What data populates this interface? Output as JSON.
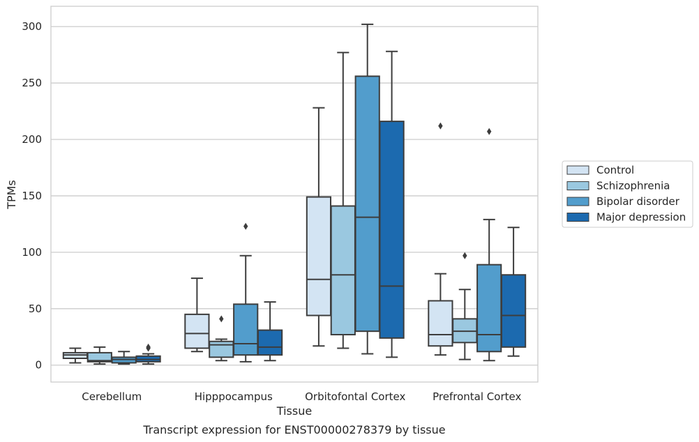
{
  "caption": "Transcript expression for ENST00000278379 by tissue",
  "chart_data": {
    "type": "box",
    "xlabel": "Tissue",
    "ylabel": "TPMs",
    "ylim": [
      -15,
      318
    ],
    "yticks": [
      0,
      50,
      100,
      150,
      200,
      250,
      300
    ],
    "grid": "y",
    "legend_position": "right",
    "categories": [
      "Cerebellum",
      "Hipppocampus",
      "Orbitofontal Cortex",
      "Prefrontal Cortex"
    ],
    "series": [
      {
        "name": "Control",
        "color": "#d3e4f3",
        "boxes": [
          {
            "whislo": 2,
            "q1": 6,
            "med": 9,
            "q3": 11,
            "whishi": 15,
            "fliers": []
          },
          {
            "whislo": 12,
            "q1": 15,
            "med": 28,
            "q3": 45,
            "whishi": 77,
            "fliers": []
          },
          {
            "whislo": 17,
            "q1": 44,
            "med": 76,
            "q3": 149,
            "whishi": 228,
            "fliers": []
          },
          {
            "whislo": 9,
            "q1": 17,
            "med": 27,
            "q3": 57,
            "whishi": 81,
            "fliers": [
              212
            ]
          }
        ]
      },
      {
        "name": "Schizophrenia",
        "color": "#9ac8e0",
        "boxes": [
          {
            "whislo": 1,
            "q1": 3,
            "med": 4,
            "q3": 11,
            "whishi": 16,
            "fliers": []
          },
          {
            "whislo": 4,
            "q1": 7,
            "med": 18,
            "q3": 21,
            "whishi": 23,
            "fliers": [
              41
            ]
          },
          {
            "whislo": 15,
            "q1": 27,
            "med": 80,
            "q3": 141,
            "whishi": 277,
            "fliers": []
          },
          {
            "whislo": 5,
            "q1": 20,
            "med": 30,
            "q3": 41,
            "whishi": 67,
            "fliers": [
              97
            ]
          }
        ]
      },
      {
        "name": "Bipolar disorder",
        "color": "#529dcc",
        "boxes": [
          {
            "whislo": 1,
            "q1": 2,
            "med": 5,
            "q3": 7,
            "whishi": 12,
            "fliers": []
          },
          {
            "whislo": 3,
            "q1": 9,
            "med": 19,
            "q3": 54,
            "whishi": 97,
            "fliers": [
              123
            ]
          },
          {
            "whislo": 10,
            "q1": 30,
            "med": 131,
            "q3": 256,
            "whishi": 302,
            "fliers": []
          },
          {
            "whislo": 4,
            "q1": 12,
            "med": 27,
            "q3": 89,
            "whishi": 129,
            "fliers": [
              207
            ]
          }
        ]
      },
      {
        "name": "Major depression",
        "color": "#1c6aaf",
        "boxes": [
          {
            "whislo": 1,
            "q1": 3,
            "med": 5,
            "q3": 8,
            "whishi": 10,
            "fliers": [
              15,
              16
            ]
          },
          {
            "whislo": 4,
            "q1": 9,
            "med": 16,
            "q3": 31,
            "whishi": 56,
            "fliers": []
          },
          {
            "whislo": 7,
            "q1": 24,
            "med": 70,
            "q3": 216,
            "whishi": 278,
            "fliers": []
          },
          {
            "whislo": 8,
            "q1": 16,
            "med": 44,
            "q3": 80,
            "whishi": 122,
            "fliers": []
          }
        ]
      }
    ]
  }
}
